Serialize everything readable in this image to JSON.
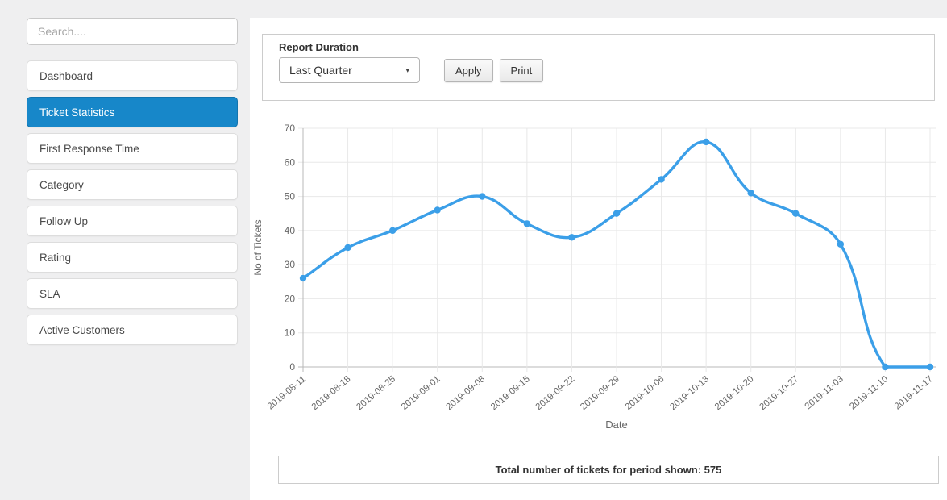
{
  "sidebar": {
    "search_placeholder": "Search....",
    "items": [
      {
        "label": "Dashboard",
        "active": false
      },
      {
        "label": "Ticket Statistics",
        "active": true
      },
      {
        "label": "First Response Time",
        "active": false
      },
      {
        "label": "Category",
        "active": false
      },
      {
        "label": "Follow Up",
        "active": false
      },
      {
        "label": "Rating",
        "active": false
      },
      {
        "label": "SLA",
        "active": false
      },
      {
        "label": "Active Customers",
        "active": false
      }
    ]
  },
  "toolbar": {
    "title": "Report Duration",
    "duration_selected": "Last Quarter",
    "dropdown_arrow_icon": "▾",
    "apply_label": "Apply",
    "print_label": "Print"
  },
  "chart_data": {
    "type": "line",
    "x": [
      "2019-08-11",
      "2019-08-18",
      "2019-08-25",
      "2019-09-01",
      "2019-09-08",
      "2019-09-15",
      "2019-09-22",
      "2019-09-29",
      "2019-10-06",
      "2019-10-13",
      "2019-10-20",
      "2019-10-27",
      "2019-11-03",
      "2019-11-10",
      "2019-11-17"
    ],
    "series": [
      {
        "name": "No of Tickets",
        "values": [
          26,
          35,
          40,
          46,
          50,
          42,
          38,
          45,
          55,
          66,
          51,
          45,
          36,
          0,
          0
        ]
      }
    ],
    "xlabel": "Date",
    "ylabel": "No of Tickets",
    "ylim": [
      0,
      70
    ],
    "y_ticks": [
      0,
      10,
      20,
      30,
      40,
      50,
      60,
      70
    ],
    "grid": true,
    "legend": "none",
    "line_tension": 0.4
  },
  "footer": {
    "summary": "Total number of tickets for period shown: 575"
  },
  "colors": {
    "active_item_bg": "#1787c9",
    "line_color": "#3b9fe8",
    "grid_color": "#e8e8e8",
    "axis_line_color": "#b8b8b8",
    "tick_text_color": "#666666"
  }
}
